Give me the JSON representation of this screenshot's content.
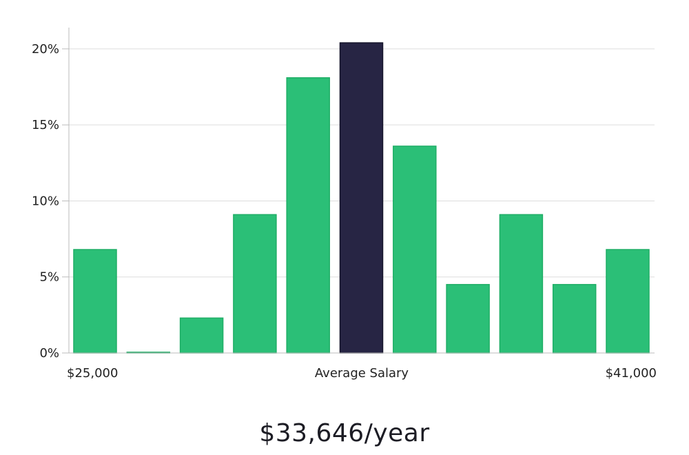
{
  "chart_data": {
    "type": "bar",
    "categories": [
      "1",
      "2",
      "3",
      "4",
      "5",
      "6",
      "7",
      "8",
      "9",
      "10",
      "11"
    ],
    "values": [
      6.8,
      0.05,
      2.3,
      9.1,
      18.1,
      20.4,
      13.6,
      4.5,
      9.1,
      4.5,
      6.8
    ],
    "highlight_index": 5,
    "title": "",
    "ylabel": "",
    "xlabel": "",
    "ylim": [
      0,
      21.4
    ],
    "yticks": [
      0,
      5,
      10,
      15,
      20
    ],
    "ytick_labels": [
      "0%",
      "5%",
      "10%",
      "15%",
      "20%"
    ],
    "x_labels": {
      "left": "$25,000",
      "center": "Average Salary",
      "right": "$41,000"
    },
    "grid": "horizontal",
    "colors": {
      "bar": "#2bbf77",
      "bar_edge": "#1fae66",
      "highlight": "#272544",
      "highlight_edge": "#15142a",
      "grid": "#dddddd",
      "axis": "#bbbbbb"
    }
  },
  "summary": {
    "salary_text": "$33,646/year"
  }
}
